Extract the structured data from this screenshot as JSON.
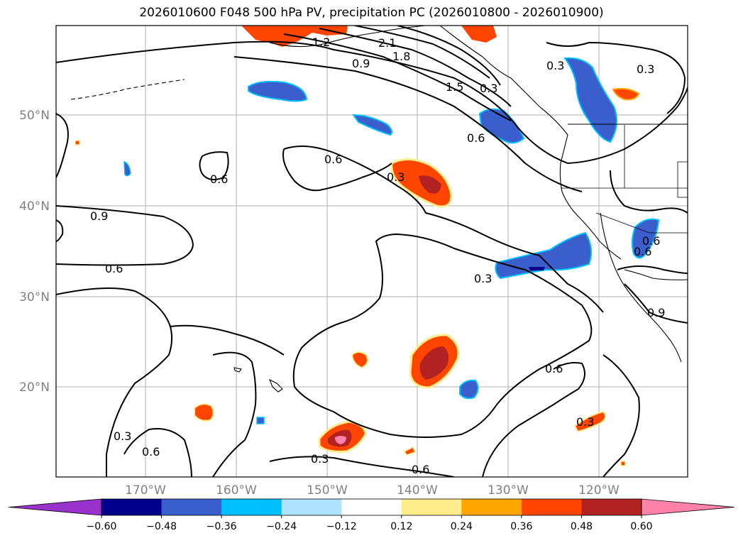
{
  "title": "2026010600 F048 500 hPa PV, precipitation PC (2026010800 - 2026010900)",
  "map": {
    "lat_labels": [
      "50°N",
      "40°N",
      "30°N",
      "20°N"
    ],
    "lon_labels": [
      "170°W",
      "160°W",
      "150°W",
      "140°W",
      "130°W",
      "120°W"
    ],
    "contour_labels": [
      "2.1",
      "1.8",
      "1.5",
      "1.2",
      "0.9",
      "0.6",
      "0.6",
      "0.6",
      "0.9",
      "0.6",
      "0.3",
      "0.3",
      "0.6",
      "0.3",
      "0.6",
      "0.9",
      "0.6",
      "0.3",
      "0.3",
      "0.3",
      "0.6",
      "0.3",
      "0.3",
      "0.6"
    ]
  },
  "colorbar": {
    "colors": [
      "#9932cc",
      "#00008b",
      "#3a5fcd",
      "#00bfff",
      "#b0e2ff",
      "#ffffff",
      "#ffec8b",
      "#ffa500",
      "#ff4500",
      "#b22222",
      "#ff82ab"
    ],
    "tick_labels": [
      "−0.60",
      "−0.48",
      "−0.36",
      "−0.24",
      "−0.12",
      "0.12",
      "0.24",
      "0.36",
      "0.48",
      "0.60"
    ]
  }
}
